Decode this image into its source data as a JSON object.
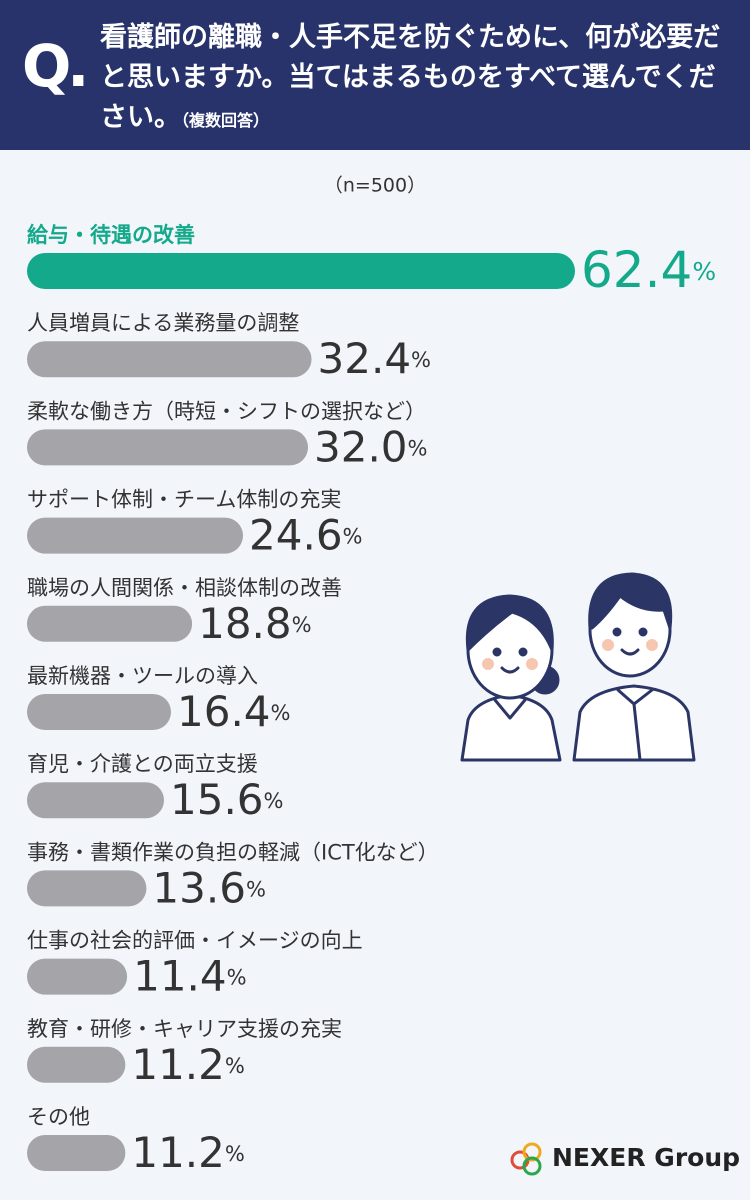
{
  "chart_data": {
    "type": "bar",
    "question_mark": "Q.",
    "title": "看護師の離職・人手不足を防ぐために、何が必要だと思いますか。当てはまるものをすべて選んでください。",
    "subtitle": "（複数回答）",
    "note": "（n=500）",
    "categories": [
      "給与・待遇の改善",
      "人員増員による業務量の調整",
      "柔軟な働き方（時短・シフトの選択など）",
      "サポート体制・チーム体制の充実",
      "職場の人間関係・相談体制の改善",
      "最新機器・ツールの導入",
      "育児・介護との両立支援",
      "事務・書類作業の負担の軽減（ICT化など）",
      "仕事の社会的評価・イメージの向上",
      "教育・研修・キャリア支援の充実",
      "その他"
    ],
    "values": [
      62.4,
      32.4,
      32,
      24.6,
      18.8,
      16.4,
      15.6,
      13.6,
      11.4,
      11.2,
      11.2
    ],
    "value_labels": [
      "62.4%",
      "32.4%",
      "32.0%",
      "24.6%",
      "18.8%",
      "16.4%",
      "15.6%",
      "13.6%",
      "11.4%",
      "11.2%",
      "11.2%"
    ],
    "colors": [
      "#14a98b",
      "#a4a4a9",
      "#a4a4a9",
      "#a4a4a9",
      "#a4a4a9",
      "#a4a4a9",
      "#a4a4a9",
      "#a4a4a9",
      "#a4a4a9",
      "#a4a4a9",
      "#a4a4a9"
    ],
    "source": "NEXER Group"
  }
}
